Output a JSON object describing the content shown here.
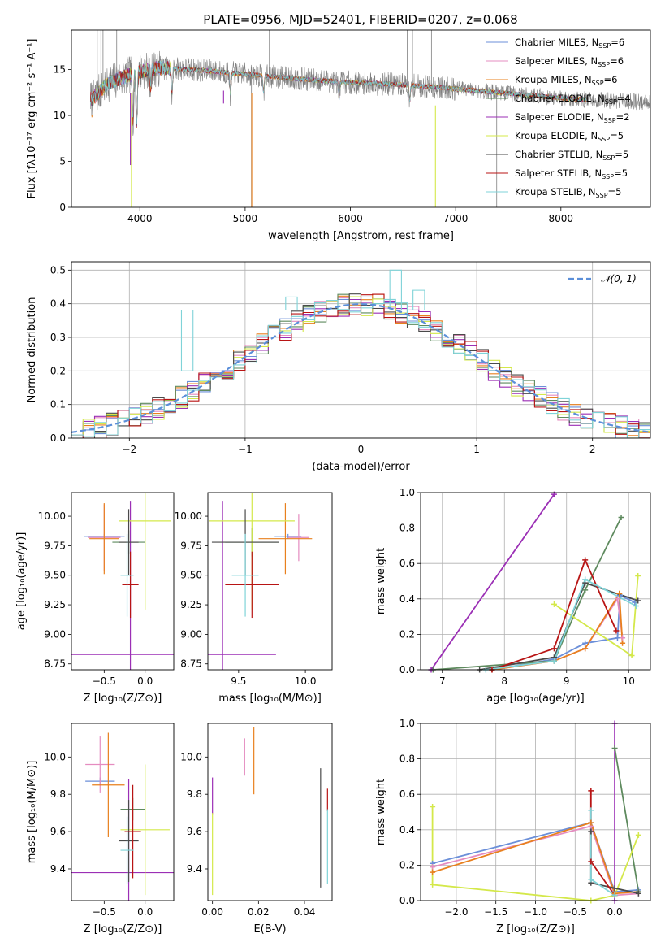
{
  "figure": {
    "title": "PLATE=0956, MJD=52401, FIBERID=0207, z=0.068"
  },
  "colors": {
    "Chabrier MILES": "#6b8fd9",
    "Salpeter MILES": "#e58cc0",
    "Kroupa MILES": "#e8801e",
    "Chabrier ELODIE": "#5e8a5e",
    "Salpeter ELODIE": "#9b2fb5",
    "Kroupa ELODIE": "#d4e84a",
    "Chabrier STELIB": "#4a4a4a",
    "Salpeter STELIB": "#b81414",
    "Kroupa STELIB": "#7fd3d8",
    "data": "#808080",
    "gaussian": "#5b8fd9"
  },
  "chart_data": [
    {
      "id": "spectrum",
      "type": "line",
      "xlabel": "wavelength [Angstrom, rest frame]",
      "ylabel": "Flux [fλ10⁻¹⁷ erg cm⁻² s⁻¹ A⁻¹]",
      "xlim": [
        3350,
        8850
      ],
      "ylim": [
        0,
        19.3
      ],
      "xticks": [
        4000,
        5000,
        6000,
        7000,
        8000
      ],
      "yticks": [
        0,
        5,
        10,
        15
      ],
      "legend_placement": "top-right",
      "series": [
        {
          "name": "Chabrier MILES, N_SSP=6",
          "label_main": "Chabrier MILES, N",
          "label_sub": "SSP",
          "label_tail": "=6"
        },
        {
          "name": "Salpeter MILES, N_SSP=6",
          "label_main": "Salpeter MILES, N",
          "label_sub": "SSP",
          "label_tail": "=6"
        },
        {
          "name": "Kroupa MILES, N_SSP=6",
          "label_main": "Kroupa MILES, N",
          "label_sub": "SSP",
          "label_tail": "=6"
        },
        {
          "name": "Chabrier ELODIE, N_SSP=4",
          "label_main": "Chabrier ELODIE, N",
          "label_sub": "SSP",
          "label_tail": "=4"
        },
        {
          "name": "Salpeter ELODIE, N_SSP=2",
          "label_main": "Salpeter ELODIE, N",
          "label_sub": "SSP",
          "label_tail": "=2"
        },
        {
          "name": "Kroupa ELODIE, N_SSP=5",
          "label_main": "Kroupa ELODIE, N",
          "label_sub": "SSP",
          "label_tail": "=5"
        },
        {
          "name": "Chabrier STELIB, N_SSP=5",
          "label_main": "Chabrier STELIB, N",
          "label_sub": "SSP",
          "label_tail": "=5"
        },
        {
          "name": "Salpeter STELIB, N_SSP=5",
          "label_main": "Salpeter STELIB, N",
          "label_sub": "SSP",
          "label_tail": "=5"
        },
        {
          "name": "Kroupa STELIB, N_SSP=5",
          "label_main": "Kroupa STELIB, N",
          "label_sub": "SSP",
          "label_tail": "=5"
        }
      ],
      "continuum": [
        [
          3550,
          11.8
        ],
        [
          3700,
          13.5
        ],
        [
          3850,
          14.2
        ],
        [
          4000,
          14.8
        ],
        [
          4200,
          15.2
        ],
        [
          4500,
          15.0
        ],
        [
          4800,
          14.7
        ],
        [
          5000,
          14.5
        ],
        [
          5300,
          14.2
        ],
        [
          5600,
          13.9
        ],
        [
          6000,
          13.6
        ],
        [
          6400,
          13.4
        ],
        [
          6800,
          13.1
        ],
        [
          7200,
          12.7
        ],
        [
          7500,
          12.4
        ],
        [
          7800,
          12.1
        ],
        [
          8100,
          11.8
        ],
        [
          8500,
          11.6
        ],
        [
          8800,
          11.5
        ]
      ],
      "model_xrange": [
        3530,
        8250
      ],
      "noise_amplitude": 1.3,
      "absorption_lines": [
        [
          3934,
          5.5
        ],
        [
          3969,
          6.0
        ],
        [
          4102,
          2.0
        ],
        [
          4305,
          3.0
        ],
        [
          4861,
          2.5
        ],
        [
          5175,
          2.0
        ],
        [
          5893,
          2.0
        ],
        [
          6563,
          2.0
        ]
      ],
      "spikes": [
        [
          3595,
          19.3
        ],
        [
          3630,
          19.3
        ],
        [
          3650,
          19.3
        ],
        [
          3780,
          19.3
        ],
        [
          5060,
          0.0
        ],
        [
          5230,
          19.3
        ],
        [
          6540,
          19.3
        ],
        [
          6590,
          19.3
        ],
        [
          6770,
          19.3
        ],
        [
          7390,
          0.0
        ],
        [
          8190,
          10.5
        ]
      ],
      "model_spikes": [
        [
          3920,
          0.0,
          "Kroupa ELODIE"
        ],
        [
          3910,
          4.6,
          "Salpeter ELODIE"
        ],
        [
          5063,
          0.0,
          "Kroupa MILES"
        ],
        [
          6808,
          0.0,
          "Kroupa ELODIE"
        ],
        [
          3545,
          10.0,
          "Kroupa MILES"
        ],
        [
          4795,
          11.3,
          "Salpeter ELODIE"
        ]
      ]
    },
    {
      "id": "residuals",
      "type": "line",
      "xlabel": "(data-model)/error",
      "ylabel": "Normed distribution",
      "xlim": [
        -2.5,
        2.5
      ],
      "ylim": [
        0,
        0.525
      ],
      "xticks": [
        -2,
        -1,
        0,
        1,
        2
      ],
      "yticks": [
        0.0,
        0.1,
        0.2,
        0.3,
        0.4,
        0.5
      ],
      "grid": true,
      "legend_placement": "top-right",
      "gaussian_label": "𝒩(0, 1)",
      "gaussian": {
        "mu": 0,
        "sigma": 1
      },
      "bin_width": 0.1,
      "jitter": 0.035,
      "spikes": [
        [
          0.25,
          0.5
        ],
        [
          0.45,
          0.44
        ],
        [
          -0.65,
          0.42
        ],
        [
          -1.55,
          0.2
        ]
      ]
    },
    {
      "id": "age_vs_Z",
      "type": "scatter",
      "xlabel": "Z [log₁₀(Z/Z⊙)]",
      "ylabel": "age  [log₁₀(age/yr)]",
      "xlim": [
        -0.9,
        0.35
      ],
      "ylim": [
        8.7,
        10.2
      ],
      "xticks": [
        -0.5,
        0.0
      ],
      "yticks": [
        8.75,
        9.0,
        9.25,
        9.5,
        9.75,
        10.0
      ],
      "points": [
        {
          "series": "Chabrier MILES",
          "x": -0.5,
          "y": 9.83,
          "xerr": 0.25,
          "yerr": 0.02
        },
        {
          "series": "Salpeter MILES",
          "x": -0.5,
          "y": 9.82,
          "xerr": 0.2,
          "yerr": 0.28
        },
        {
          "series": "Kroupa MILES",
          "x": -0.5,
          "y": 9.81,
          "xerr": 0.18,
          "yerr": 0.3
        },
        {
          "series": "Chabrier ELODIE",
          "x": -0.2,
          "y": 9.78,
          "xerr": 0.2,
          "yerr": 0.1
        },
        {
          "series": "Salpeter ELODIE",
          "x": -0.18,
          "y": 8.83,
          "xerr": 0.8,
          "yerr": 1.3
        },
        {
          "series": "Kroupa ELODIE",
          "x": 0.0,
          "y": 9.96,
          "xerr": 0.32,
          "yerr": 0.75
        },
        {
          "series": "Chabrier STELIB",
          "x": -0.2,
          "y": 9.78,
          "xerr": 0.12,
          "yerr": 0.28
        },
        {
          "series": "Salpeter STELIB",
          "x": -0.18,
          "y": 9.42,
          "xerr": 0.1,
          "yerr": 0.28
        },
        {
          "series": "Kroupa STELIB",
          "x": -0.22,
          "y": 9.5,
          "xerr": 0.08,
          "yerr": 0.35
        }
      ]
    },
    {
      "id": "age_vs_mass",
      "type": "scatter",
      "xlabel": "mass [log₁₀(M/M⊙)]",
      "ylabel": "",
      "xlim": [
        9.27,
        10.2
      ],
      "ylim": [
        8.7,
        10.2
      ],
      "xticks": [
        9.5,
        10.0
      ],
      "yticks": [
        8.75,
        9.0,
        9.25,
        9.5,
        9.75,
        10.0
      ],
      "points": [
        {
          "series": "Chabrier MILES",
          "x": 9.87,
          "y": 9.83,
          "xerr": 0.1,
          "yerr": 0.02
        },
        {
          "series": "Salpeter MILES",
          "x": 9.95,
          "y": 9.82,
          "xerr": 0.08,
          "yerr": 0.2
        },
        {
          "series": "Kroupa MILES",
          "x": 9.85,
          "y": 9.81,
          "xerr": 0.2,
          "yerr": 0.3
        },
        {
          "series": "Chabrier ELODIE",
          "x": 9.6,
          "y": 9.78,
          "xerr": 0.2,
          "yerr": 0.12
        },
        {
          "series": "Salpeter ELODIE",
          "x": 9.38,
          "y": 8.83,
          "xerr": 0.4,
          "yerr": 1.3
        },
        {
          "series": "Kroupa ELODIE",
          "x": 9.6,
          "y": 9.96,
          "xerr": 0.32,
          "yerr": 0.75
        },
        {
          "series": "Chabrier STELIB",
          "x": 9.55,
          "y": 9.78,
          "xerr": 0.25,
          "yerr": 0.28
        },
        {
          "series": "Salpeter STELIB",
          "x": 9.6,
          "y": 9.42,
          "xerr": 0.2,
          "yerr": 0.28
        },
        {
          "series": "Kroupa STELIB",
          "x": 9.55,
          "y": 9.5,
          "xerr": 0.1,
          "yerr": 0.35
        }
      ]
    },
    {
      "id": "weight_vs_age",
      "type": "line",
      "xlabel": "age  [log₁₀(age/yr)]",
      "ylabel": "mass weight",
      "xlim": [
        6.65,
        10.35
      ],
      "ylim": [
        0,
        1.0
      ],
      "xticks": [
        7,
        8,
        9,
        10
      ],
      "yticks": [
        0.0,
        0.2,
        0.4,
        0.6,
        0.8,
        1.0
      ],
      "grid": true,
      "series": [
        {
          "name": "Chabrier MILES",
          "points": [
            [
              7.8,
              0.0
            ],
            [
              8.8,
              0.06
            ],
            [
              9.3,
              0.15
            ],
            [
              9.82,
              0.18
            ],
            [
              9.86,
              0.42
            ],
            [
              10.1,
              0.38
            ]
          ]
        },
        {
          "name": "Salpeter MILES",
          "points": [
            [
              7.8,
              0.0
            ],
            [
              8.8,
              0.05
            ],
            [
              9.3,
              0.12
            ],
            [
              9.82,
              0.4
            ],
            [
              9.9,
              0.18
            ]
          ]
        },
        {
          "name": "Kroupa MILES",
          "points": [
            [
              7.8,
              0.0
            ],
            [
              8.8,
              0.05
            ],
            [
              9.3,
              0.12
            ],
            [
              9.85,
              0.43
            ],
            [
              9.9,
              0.15
            ]
          ]
        },
        {
          "name": "Chabrier ELODIE",
          "points": [
            [
              6.85,
              0.0
            ],
            [
              8.8,
              0.05
            ],
            [
              9.3,
              0.45
            ],
            [
              9.88,
              0.86
            ]
          ]
        },
        {
          "name": "Salpeter ELODIE",
          "points": [
            [
              6.82,
              0.0
            ],
            [
              8.8,
              0.99
            ]
          ]
        },
        {
          "name": "Kroupa ELODIE",
          "points": [
            [
              8.8,
              0.37
            ],
            [
              10.05,
              0.08
            ],
            [
              10.15,
              0.53
            ]
          ]
        },
        {
          "name": "Chabrier STELIB",
          "points": [
            [
              7.6,
              0.0
            ],
            [
              8.8,
              0.07
            ],
            [
              9.3,
              0.49
            ],
            [
              10.15,
              0.39
            ]
          ]
        },
        {
          "name": "Salpeter STELIB",
          "points": [
            [
              7.8,
              0.0
            ],
            [
              8.8,
              0.12
            ],
            [
              9.3,
              0.62
            ],
            [
              9.8,
              0.22
            ]
          ]
        },
        {
          "name": "Kroupa STELIB",
          "points": [
            [
              7.7,
              0.0
            ],
            [
              8.8,
              0.05
            ],
            [
              9.3,
              0.51
            ],
            [
              10.12,
              0.36
            ]
          ]
        }
      ]
    },
    {
      "id": "mass_vs_Z",
      "type": "scatter",
      "xlabel": "Z [log₁₀(Z/Z⊙)]",
      "ylabel": "mass [log₁₀(M/M⊙)]",
      "xlim": [
        -0.9,
        0.35
      ],
      "ylim": [
        9.23,
        10.18
      ],
      "xticks": [
        -0.5,
        0.0
      ],
      "yticks": [
        9.4,
        9.6,
        9.8,
        10.0
      ],
      "points": [
        {
          "series": "Chabrier MILES",
          "x": -0.55,
          "y": 9.87,
          "xerr": 0.18,
          "yerr": 0.02
        },
        {
          "series": "Salpeter MILES",
          "x": -0.55,
          "y": 9.96,
          "xerr": 0.18,
          "yerr": 0.15
        },
        {
          "series": "Kroupa MILES",
          "x": -0.45,
          "y": 9.85,
          "xerr": 0.2,
          "yerr": 0.28
        },
        {
          "series": "Chabrier ELODIE",
          "x": -0.15,
          "y": 9.72,
          "xerr": 0.15,
          "yerr": 0.06
        },
        {
          "series": "Salpeter ELODIE",
          "x": -0.2,
          "y": 9.38,
          "xerr": 0.8,
          "yerr": 0.5
        },
        {
          "series": "Kroupa ELODIE",
          "x": 0.0,
          "y": 9.61,
          "xerr": 0.3,
          "yerr": 0.35
        },
        {
          "series": "Chabrier STELIB",
          "x": -0.2,
          "y": 9.55,
          "xerr": 0.12,
          "yerr": 0.22
        },
        {
          "series": "Salpeter STELIB",
          "x": -0.15,
          "y": 9.6,
          "xerr": 0.1,
          "yerr": 0.25
        },
        {
          "series": "Kroupa STELIB",
          "x": -0.22,
          "y": 9.5,
          "xerr": 0.08,
          "yerr": 0.18
        }
      ]
    },
    {
      "id": "mass_vs_EBV",
      "type": "scatter",
      "xlabel": "E(B-V)",
      "ylabel": "",
      "xlim": [
        -0.002,
        0.052
      ],
      "ylim": [
        9.23,
        10.18
      ],
      "xticks": [
        0.0,
        0.02,
        0.04
      ],
      "yticks": [
        9.4,
        9.6,
        9.8,
        10.0
      ],
      "points": [
        {
          "series": "Salpeter MILES",
          "x": 0.014,
          "y": 10.0,
          "yerr": 0.1
        },
        {
          "series": "Kroupa MILES",
          "x": 0.018,
          "y": 9.98,
          "yerr": 0.18
        },
        {
          "series": "Salpeter ELODIE",
          "x": 0.0,
          "y": 9.79,
          "yerr": 0.1
        },
        {
          "series": "Kroupa ELODIE",
          "x": 0.0,
          "y": 9.48,
          "yerr": 0.22
        },
        {
          "series": "Chabrier STELIB",
          "x": 0.047,
          "y": 9.62,
          "yerr": 0.32
        },
        {
          "series": "Salpeter STELIB",
          "x": 0.05,
          "y": 9.77,
          "yerr": 0.06
        },
        {
          "series": "Kroupa STELIB",
          "x": 0.05,
          "y": 9.52,
          "yerr": 0.2
        }
      ]
    },
    {
      "id": "weight_vs_Z",
      "type": "line",
      "xlabel": "Z [log₁₀(Z/Z⊙)]",
      "ylabel": "mass weight",
      "xlim": [
        -2.45,
        0.45
      ],
      "ylim": [
        0,
        1.0
      ],
      "xticks": [
        -2.0,
        -1.5,
        -1.0,
        -0.5,
        0.0
      ],
      "yticks": [
        0.0,
        0.2,
        0.4,
        0.6,
        0.8,
        1.0
      ],
      "grid": true,
      "series": [
        {
          "name": "Chabrier MILES",
          "points": [
            [
              -2.3,
              0.21
            ],
            [
              -0.3,
              0.44
            ],
            [
              0.0,
              0.05
            ],
            [
              0.3,
              0.06
            ]
          ]
        },
        {
          "name": "Salpeter MILES",
          "points": [
            [
              -2.3,
              0.19
            ],
            [
              -0.3,
              0.42
            ],
            [
              0.0,
              0.03
            ],
            [
              0.3,
              0.04
            ]
          ]
        },
        {
          "name": "Kroupa MILES",
          "points": [
            [
              -2.3,
              0.16
            ],
            [
              -0.3,
              0.44
            ],
            [
              0.0,
              0.04
            ],
            [
              0.3,
              0.05
            ]
          ]
        },
        {
          "name": "Chabrier ELODIE",
          "points": [
            [
              0.0,
              0.86
            ],
            [
              0.3,
              0.05
            ]
          ]
        },
        {
          "name": "Salpeter ELODIE",
          "points": [
            [
              0.0,
              0.0
            ],
            [
              0.0,
              1.0
            ]
          ]
        },
        {
          "name": "Kroupa ELODIE",
          "points": [
            [
              -2.3,
              0.53
            ],
            [
              -2.3,
              0.09
            ],
            [
              -0.3,
              0.0
            ],
            [
              0.0,
              0.03
            ],
            [
              0.3,
              0.37
            ]
          ]
        },
        {
          "name": "Chabrier STELIB",
          "points": [
            [
              -0.3,
              0.39
            ],
            [
              -0.3,
              0.1
            ],
            [
              0.0,
              0.07
            ],
            [
              0.3,
              0.04
            ]
          ]
        },
        {
          "name": "Salpeter STELIB",
          "points": [
            [
              -0.3,
              0.62
            ],
            [
              -0.3,
              0.22
            ],
            [
              0.0,
              0.03
            ]
          ]
        },
        {
          "name": "Kroupa STELIB",
          "points": [
            [
              -0.3,
              0.51
            ],
            [
              -0.3,
              0.12
            ],
            [
              0.0,
              0.03
            ]
          ]
        }
      ]
    }
  ]
}
